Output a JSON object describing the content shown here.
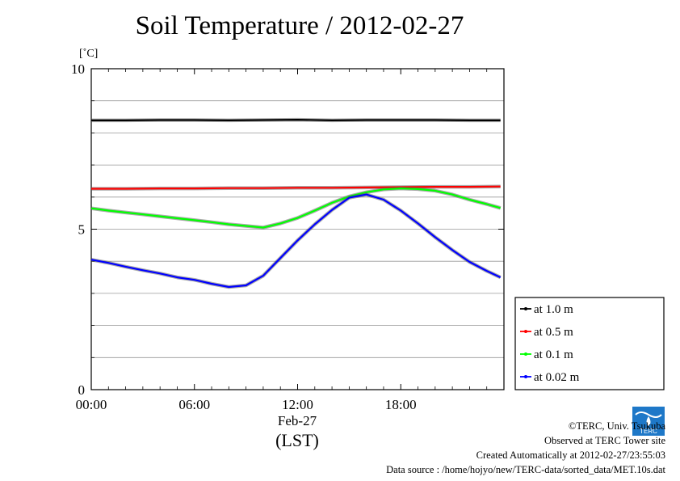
{
  "title": "Soil Temperature / 2012-02-27",
  "chart_data": {
    "type": "line",
    "title": "Soil Temperature / 2012-02-27",
    "ylabel": "[˚C]",
    "xlabel_date": "Feb-27",
    "xlabel": "(LST)",
    "ylim": [
      0,
      10
    ],
    "y_ticks": [
      "0",
      "5",
      "10"
    ],
    "xlim_hours": [
      0,
      24
    ],
    "x_ticks": [
      {
        "hour": 0,
        "label": "00:00"
      },
      {
        "hour": 6,
        "label": "06:00"
      },
      {
        "hour": 12,
        "label": "12:00"
      },
      {
        "hour": 18,
        "label": "18:00"
      }
    ],
    "grid": true,
    "legend_placement": "right",
    "series": [
      {
        "name": "at 1.0 m",
        "color": "#000000",
        "x": [
          0,
          2,
          4,
          6,
          8,
          10,
          12,
          14,
          16,
          18,
          20,
          22,
          23.8
        ],
        "y": [
          8.39,
          8.39,
          8.4,
          8.4,
          8.39,
          8.4,
          8.41,
          8.39,
          8.4,
          8.4,
          8.4,
          8.39,
          8.39
        ]
      },
      {
        "name": "at 0.5 m",
        "color": "#ff0000",
        "x": [
          0,
          2,
          4,
          6,
          8,
          10,
          12,
          14,
          16,
          18,
          20,
          22,
          23.8
        ],
        "y": [
          6.26,
          6.26,
          6.27,
          6.27,
          6.28,
          6.28,
          6.29,
          6.29,
          6.3,
          6.31,
          6.32,
          6.32,
          6.33
        ]
      },
      {
        "name": "at 0.1 m",
        "color": "#00ff00",
        "x": [
          0,
          1,
          2,
          3,
          4,
          5,
          6,
          7,
          8,
          9,
          10,
          11,
          12,
          13,
          14,
          15,
          16,
          17,
          18,
          19,
          20,
          21,
          22,
          23,
          23.8
        ],
        "y": [
          5.65,
          5.58,
          5.52,
          5.46,
          5.4,
          5.34,
          5.28,
          5.22,
          5.15,
          5.1,
          5.05,
          5.18,
          5.35,
          5.58,
          5.82,
          6.02,
          6.15,
          6.24,
          6.27,
          6.25,
          6.2,
          6.08,
          5.92,
          5.78,
          5.66
        ]
      },
      {
        "name": "at 0.02 m",
        "color": "#0000ff",
        "x": [
          0,
          1,
          2,
          3,
          4,
          5,
          6,
          7,
          8,
          9,
          10,
          11,
          12,
          13,
          14,
          15,
          16,
          17,
          18,
          19,
          20,
          21,
          22,
          23,
          23.8
        ],
        "y": [
          4.05,
          3.95,
          3.83,
          3.72,
          3.62,
          3.5,
          3.42,
          3.3,
          3.2,
          3.25,
          3.55,
          4.1,
          4.65,
          5.15,
          5.6,
          5.98,
          6.08,
          5.92,
          5.58,
          5.18,
          4.75,
          4.35,
          3.98,
          3.7,
          3.5
        ]
      }
    ]
  },
  "footer": {
    "copyright": "©TERC, Univ. Tsukuba",
    "observed": "Observed at TERC Tower site",
    "created": "Created Automatically at 2012-02-27/23:55:03",
    "source": "Data source : /home/hojyo/new/TERC-data/sorted_data/MET.10s.dat"
  },
  "logo": {
    "text": "TERC",
    "color": "#1e78c8"
  }
}
